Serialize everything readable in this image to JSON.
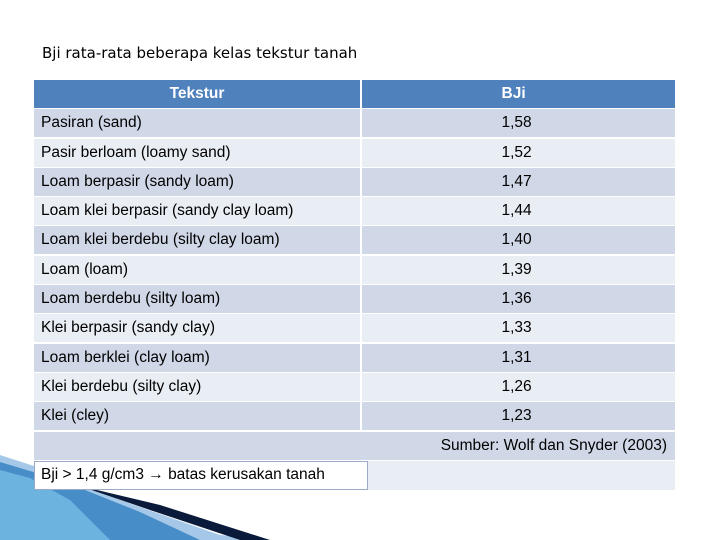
{
  "title": "Bji rata-rata beberapa kelas tekstur tanah",
  "table": {
    "header": [
      "Tekstur",
      "BJi"
    ],
    "rows": [
      [
        "Pasiran (sand)",
        "1,58"
      ],
      [
        "Pasir berloam (loamy sand)",
        "1,52"
      ],
      [
        "Loam berpasir (sandy loam)",
        "1,47"
      ],
      [
        "Loam klei berpasir (sandy clay loam)",
        "1,44"
      ],
      [
        "Loam klei berdebu (silty clay loam)",
        "1,40"
      ],
      [
        "Loam (loam)",
        "1,39"
      ],
      [
        "Loam berdebu  (silty loam)",
        "1,36"
      ],
      [
        "Klei berpasir (sandy clay)",
        "1,33"
      ],
      [
        "Loam berklei (clay loam)",
        "1,31"
      ],
      [
        "Klei berdebu (silty clay)",
        "1,26"
      ],
      [
        "Klei (cley)",
        "1,23"
      ]
    ],
    "source": "Sumber: Wolf dan Snyder (2003)",
    "note": "Bji > 1,4 g/cm3 → batas kerusakan tanah"
  }
}
